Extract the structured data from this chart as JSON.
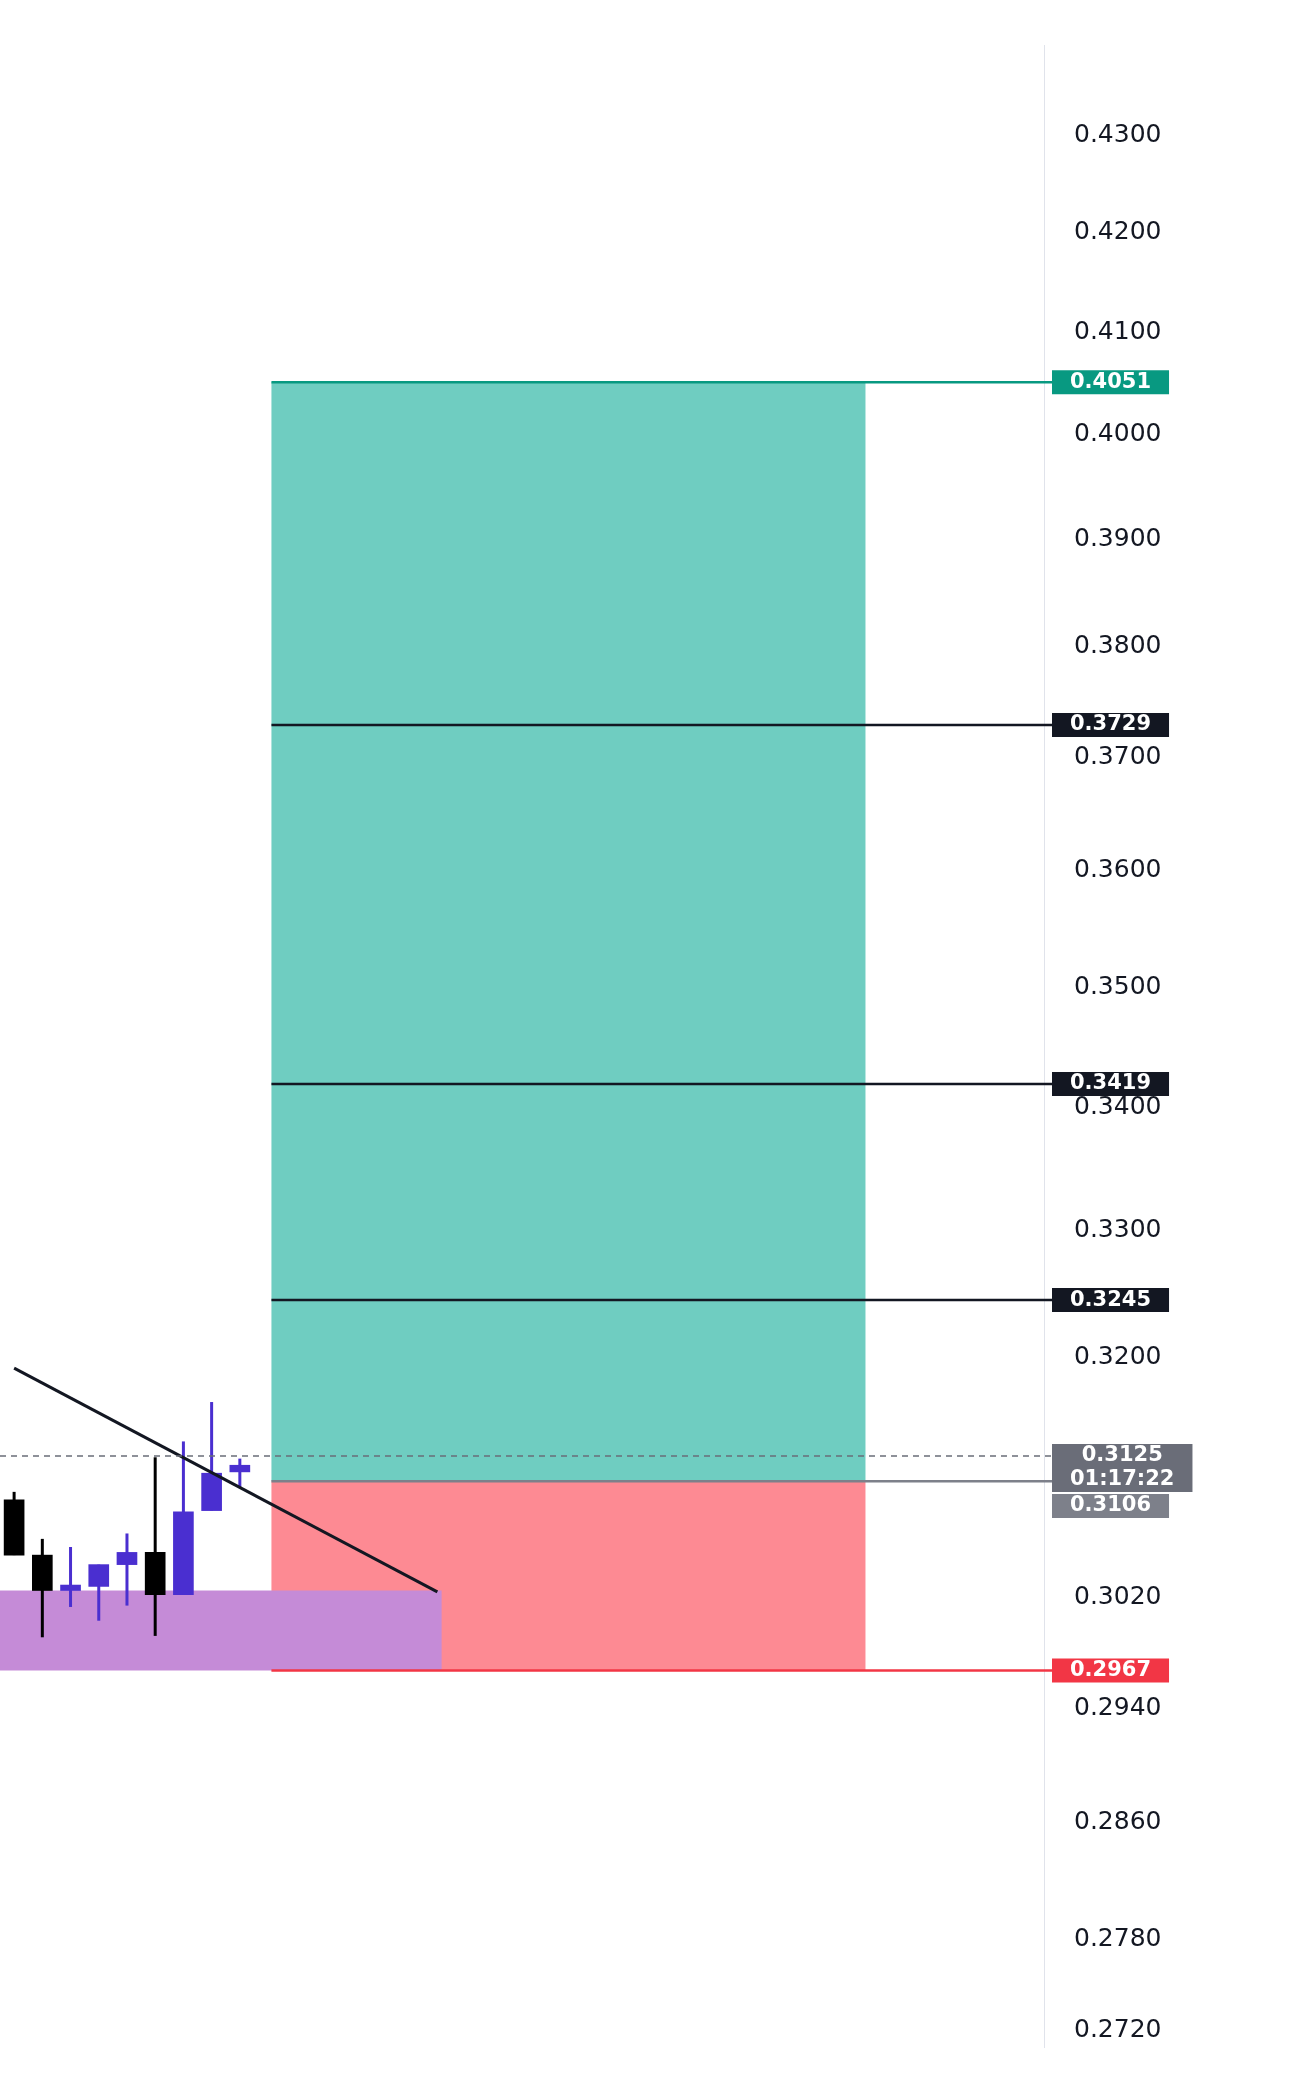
{
  "chart_data": {
    "type": "candlestick",
    "categories": [
      null,
      null,
      null,
      null,
      null,
      null,
      null,
      null,
      null,
      null,
      null,
      null,
      null,
      null,
      null,
      null,
      null,
      null,
      null,
      null,
      null,
      null,
      null,
      null,
      null,
      null,
      null,
      null,
      null,
      null,
      null,
      null,
      null,
      null,
      null,
      null,
      null
    ],
    "ohlc": [
      [
        0.3092,
        0.3098,
        0.3051,
        0.3051
      ],
      [
        0.3051,
        0.3063,
        0.2991,
        0.3025
      ],
      [
        0.3025,
        0.3057,
        0.3013,
        0.3029
      ],
      [
        0.3028,
        0.3044,
        0.3003,
        0.3044
      ],
      [
        0.3044,
        0.3067,
        0.3014,
        0.3053
      ],
      [
        0.3053,
        0.3124,
        0.2992,
        0.3022
      ],
      [
        0.3022,
        0.3136,
        0.3022,
        0.3083
      ],
      [
        0.3084,
        0.3166,
        0.3084,
        0.3112
      ],
      [
        0.3113,
        0.3123,
        0.3101,
        0.3118
      ],
      null,
      null,
      null,
      null,
      null,
      null,
      null,
      null,
      null,
      null,
      null,
      null,
      null,
      null,
      null,
      null,
      null,
      null,
      null,
      null,
      null,
      null,
      null,
      null,
      null,
      null,
      null,
      null
    ],
    "colors": [
      "#000000",
      "#000000",
      "#4a2fd0",
      "#4a2fd0",
      "#4a2fd0",
      "#000000",
      "#4a2fd0",
      "#4a2fd0",
      "#4a2fd0",
      null,
      null,
      null,
      null,
      null,
      null,
      null,
      null,
      null,
      null,
      null,
      null,
      null,
      null,
      null,
      null,
      null,
      null,
      null,
      null,
      null,
      null,
      null,
      null,
      null,
      null,
      null,
      null
    ],
    "series": [
      {
        "type": "line",
        "color": "#131722",
        "values": [
          0.3192,
          null,
          null,
          null,
          null,
          null,
          null,
          null,
          null,
          null,
          null,
          null,
          null,
          null,
          null,
          0.3024,
          null,
          null,
          null,
          null,
          null,
          null,
          null,
          null,
          null,
          null,
          null,
          null,
          null,
          null,
          null,
          null,
          null,
          null,
          null,
          null,
          null
        ]
      }
    ],
    "log": "y",
    "ylim": [
      0.2709,
      0.4395
    ],
    "yticks": [
      {
        "value": 0.43,
        "label": "0.4300"
      },
      {
        "value": 0.42,
        "label": "0.4200"
      },
      {
        "value": 0.41,
        "label": "0.4100"
      },
      {
        "value": 0.4,
        "label": "0.4000"
      },
      {
        "value": 0.39,
        "label": "0.3900"
      },
      {
        "value": 0.38,
        "label": "0.3800"
      },
      {
        "value": 0.37,
        "label": "0.3700"
      },
      {
        "value": 0.36,
        "label": "0.3600"
      },
      {
        "value": 0.35,
        "label": "0.3500"
      },
      {
        "value": 0.34,
        "label": "0.3400"
      },
      {
        "value": 0.33,
        "label": "0.3300"
      },
      {
        "value": 0.32,
        "label": "0.3200"
      },
      {
        "value": 0.302,
        "label": "0.3020"
      },
      {
        "value": 0.294,
        "label": "0.2940"
      },
      {
        "value": 0.286,
        "label": "0.2860"
      },
      {
        "value": 0.278,
        "label": "0.2780"
      },
      {
        "value": 0.272,
        "label": "0.2720"
      }
    ],
    "tick_labels": "y",
    "bands": [
      {
        "axis": "y",
        "from": 0.3106,
        "to": 0.4051,
        "color": "#6fcdc1"
      },
      {
        "axis": "y",
        "from": 0.2967,
        "to": 0.3106,
        "color": "#fd8a93"
      },
      {
        "axis": "y",
        "from": 0.2967,
        "to": 0.3025,
        "color": "#c58bd7"
      }
    ],
    "ref_lines": [
      {
        "axis": "y",
        "value": 0.4051,
        "label": "0.4051",
        "color": "#089981"
      },
      {
        "axis": "y",
        "value": 0.3729,
        "label": "0.3729",
        "color": "#131722"
      },
      {
        "axis": "y",
        "value": 0.3419,
        "label": "0.3419",
        "color": "#131722"
      },
      {
        "axis": "y",
        "value": 0.3245,
        "label": "0.3245",
        "color": "#131722"
      },
      {
        "axis": "y",
        "value": 0.3125,
        "label": "0.3125\n01:17:22",
        "color": "#6a6d78",
        "line_style": "dashed"
      },
      {
        "axis": "y",
        "value": 0.3106,
        "label": "0.3106",
        "color": "#7d808a"
      },
      {
        "axis": "y",
        "value": 0.2967,
        "label": "0.2967",
        "color": "#f23645"
      }
    ]
  }
}
